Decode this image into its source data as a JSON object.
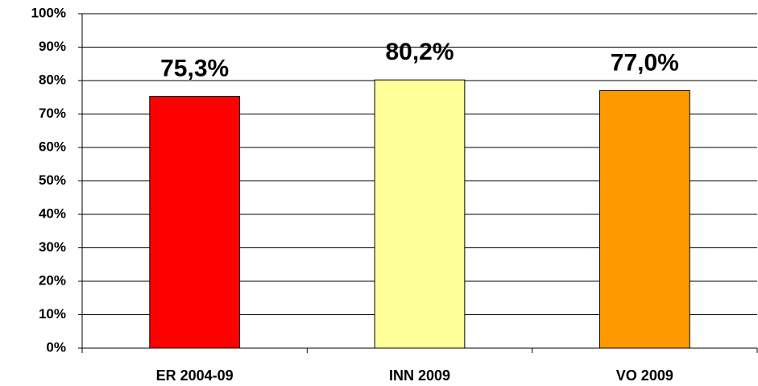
{
  "chart_data": {
    "type": "bar",
    "categories": [
      "ER 2004-09",
      "INN 2009",
      "VO 2009"
    ],
    "values": [
      75.3,
      80.2,
      77.0
    ],
    "value_labels": [
      "75,3%",
      "80,2%",
      "77,0%"
    ],
    "colors": [
      "#ff0000",
      "#ffff99",
      "#ff9900"
    ],
    "ylim": [
      0,
      100
    ],
    "yticks": [
      {
        "value": 0,
        "label": "0%"
      },
      {
        "value": 10,
        "label": "10%"
      },
      {
        "value": 20,
        "label": "20%"
      },
      {
        "value": 30,
        "label": "30%"
      },
      {
        "value": 40,
        "label": "40%"
      },
      {
        "value": 50,
        "label": "50%"
      },
      {
        "value": 60,
        "label": "60%"
      },
      {
        "value": 70,
        "label": "70%"
      },
      {
        "value": 80,
        "label": "80%"
      },
      {
        "value": 90,
        "label": "90%"
      },
      {
        "value": 100,
        "label": "100%"
      }
    ],
    "grid": true
  }
}
